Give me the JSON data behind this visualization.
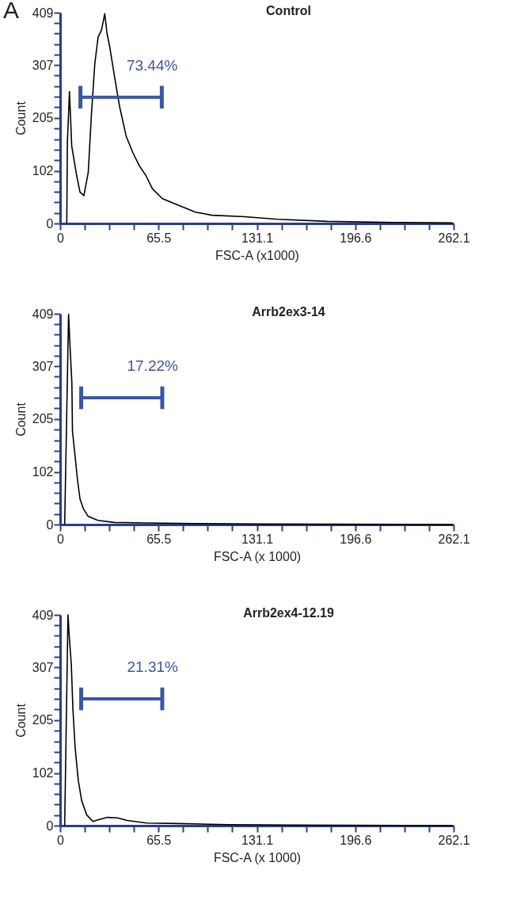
{
  "chart_data": [
    {
      "type": "line",
      "title": "Control",
      "xlabel": "FSC-A (x1000)",
      "ylabel": "Count",
      "series": [
        {
          "color": "#000000",
          "x": [
            4.4,
            4.8,
            6.2,
            7.7,
            11.0,
            13.2,
            15.8,
            18.7,
            20.9,
            23.1,
            25.3,
            27.5,
            29.7,
            31.2,
            33.0,
            36.2,
            39.5,
            43.9,
            48.3,
            52.7,
            57.1,
            61.5,
            68.1,
            79.1,
            90.1,
            101.1,
            123.0,
            145.0,
            177.9,
            221.9,
            261.4
          ],
          "values": [
            0,
            157,
            256,
            150,
            93,
            61,
            54,
            99,
            215,
            311,
            362,
            375,
            407,
            369,
            343,
            285,
            228,
            170,
            138,
            112,
            93,
            67,
            48,
            35,
            22,
            16,
            13,
            8,
            4,
            2,
            1
          ]
        },
        {
          "name": "73.44%",
          "color": "#3a55a8",
          "x": [
            13.5,
            67.7
          ],
          "values": [
            245,
            245
          ],
          "errors": [
            22,
            22
          ]
        }
      ],
      "xlim": [
        0,
        262.1
      ],
      "ylim": [
        0,
        409
      ],
      "xticks": [
        0,
        {
          "value": 16.4,
          "label": null
        },
        {
          "value": 32.8,
          "label": null
        },
        {
          "value": 49.1,
          "label": null
        },
        65.5,
        {
          "value": 81.9,
          "label": null
        },
        {
          "value": 98.3,
          "label": null
        },
        {
          "value": 114.7,
          "label": null
        },
        131.1,
        {
          "value": 147.5,
          "label": null
        },
        {
          "value": 163.9,
          "label": null
        },
        {
          "value": 180.2,
          "label": null
        },
        196.6,
        {
          "value": 213.0,
          "label": null
        },
        {
          "value": 229.4,
          "label": null
        },
        {
          "value": 245.7,
          "label": null
        },
        262.1
      ],
      "yticks": [
        0,
        {
          "value": 20.5,
          "label": null
        },
        {
          "value": 41,
          "label": null
        },
        {
          "value": 61.5,
          "label": null
        },
        {
          "value": 82,
          "label": null
        },
        102,
        {
          "value": 122.5,
          "label": null
        },
        {
          "value": 143,
          "label": null
        },
        {
          "value": 163.5,
          "label": null
        },
        {
          "value": 184,
          "label": null
        },
        205,
        {
          "value": 225.5,
          "label": null
        },
        {
          "value": 246,
          "label": null
        },
        {
          "value": 266.5,
          "label": null
        },
        {
          "value": 287,
          "label": null
        },
        307,
        {
          "value": 327.5,
          "label": null
        },
        {
          "value": 348,
          "label": null
        },
        {
          "value": 368.5,
          "label": null
        },
        {
          "value": 389,
          "label": null
        },
        409
      ],
      "annotations": [
        "A"
      ]
    },
    {
      "type": "line",
      "title": "Arrb2ex3-14",
      "xlabel": "FSC-A (x 1000)",
      "ylabel": "Count",
      "series": [
        {
          "color": "#000000",
          "x": [
            3.0,
            5.6,
            6.7,
            7.8,
            8.2,
            10.0,
            11.5,
            13.2,
            15.4,
            18.6,
            25.1,
            36.0,
            57.7,
            90.2,
            133.5,
            261.4
          ],
          "values": [
            0,
            408,
            338,
            275,
            181,
            131,
            88,
            50,
            31,
            16,
            8,
            4,
            3,
            2,
            1,
            0
          ]
        },
        {
          "name": "17.22%",
          "color": "#3a55a8",
          "x": [
            14,
            68
          ],
          "values": [
            246,
            246
          ],
          "errors": [
            22,
            22
          ]
        }
      ],
      "xlim": [
        0,
        262.1
      ],
      "ylim": [
        0,
        409
      ],
      "xticks": [
        0,
        {
          "value": 16.4,
          "label": null
        },
        {
          "value": 32.8,
          "label": null
        },
        {
          "value": 49.1,
          "label": null
        },
        65.5,
        {
          "value": 81.9,
          "label": null
        },
        {
          "value": 98.3,
          "label": null
        },
        {
          "value": 114.7,
          "label": null
        },
        131.1,
        {
          "value": 147.5,
          "label": null
        },
        {
          "value": 163.9,
          "label": null
        },
        {
          "value": 180.2,
          "label": null
        },
        196.6,
        {
          "value": 213.0,
          "label": null
        },
        {
          "value": 229.4,
          "label": null
        },
        {
          "value": 245.7,
          "label": null
        },
        262.1
      ],
      "yticks": [
        0,
        {
          "value": 20.5,
          "label": null
        },
        {
          "value": 41,
          "label": null
        },
        {
          "value": 61.5,
          "label": null
        },
        {
          "value": 82,
          "label": null
        },
        102,
        {
          "value": 122.5,
          "label": null
        },
        {
          "value": 143,
          "label": null
        },
        {
          "value": 163.5,
          "label": null
        },
        {
          "value": 184,
          "label": null
        },
        205,
        {
          "value": 225.5,
          "label": null
        },
        {
          "value": 246,
          "label": null
        },
        {
          "value": 266.5,
          "label": null
        },
        {
          "value": 287,
          "label": null
        },
        307,
        {
          "value": 327.5,
          "label": null
        },
        {
          "value": 348,
          "label": null
        },
        {
          "value": 368.5,
          "label": null
        },
        {
          "value": 389,
          "label": null
        },
        409
      ],
      "grid": false
    },
    {
      "type": "line",
      "title": "Arrb2ex4-12.19",
      "xlabel": "FSC-A (x 1000)",
      "ylabel": "Count",
      "series": [
        {
          "color": "#000000",
          "x": [
            3.0,
            5.2,
            6.1,
            7.4,
            8.5,
            10.0,
            12.1,
            14.3,
            17.6,
            21.9,
            25.1,
            31.6,
            38.2,
            44.7,
            57.7,
            79.3,
            111.9,
            155.2,
            261.4
          ],
          "values": [
            0,
            409,
            365,
            314,
            226,
            150,
            87,
            49,
            21,
            8,
            11,
            16,
            15,
            10,
            5,
            4,
            2,
            1,
            0
          ]
        },
        {
          "name": "21.31%",
          "color": "#3a55a8",
          "x": [
            14,
            68
          ],
          "values": [
            246,
            246
          ],
          "errors": [
            22,
            22
          ]
        }
      ],
      "xlim": [
        0,
        262.1
      ],
      "ylim": [
        0,
        409
      ],
      "xticks": [
        0,
        {
          "value": 16.4,
          "label": null
        },
        {
          "value": 32.8,
          "label": null
        },
        {
          "value": 49.1,
          "label": null
        },
        65.5,
        {
          "value": 81.9,
          "label": null
        },
        {
          "value": 98.3,
          "label": null
        },
        {
          "value": 114.7,
          "label": null
        },
        131.1,
        {
          "value": 147.5,
          "label": null
        },
        {
          "value": 163.9,
          "label": null
        },
        {
          "value": 180.2,
          "label": null
        },
        196.6,
        {
          "value": 213.0,
          "label": null
        },
        {
          "value": 229.4,
          "label": null
        },
        {
          "value": 245.7,
          "label": null
        },
        262.1
      ],
      "yticks": [
        0,
        {
          "value": 20.5,
          "label": null
        },
        {
          "value": 41,
          "label": null
        },
        {
          "value": 61.5,
          "label": null
        },
        {
          "value": 82,
          "label": null
        },
        102,
        {
          "value": 122.5,
          "label": null
        },
        {
          "value": 143,
          "label": null
        },
        {
          "value": 163.5,
          "label": null
        },
        {
          "value": 184,
          "label": null
        },
        205,
        {
          "value": 225.5,
          "label": null
        },
        {
          "value": 246,
          "label": null
        },
        {
          "value": 266.5,
          "label": null
        },
        {
          "value": 287,
          "label": null
        },
        307,
        {
          "value": 327.5,
          "label": null
        },
        {
          "value": 348,
          "label": null
        },
        {
          "value": 368.5,
          "label": null
        },
        {
          "value": 389,
          "label": null
        },
        409
      ],
      "grid": false
    }
  ]
}
